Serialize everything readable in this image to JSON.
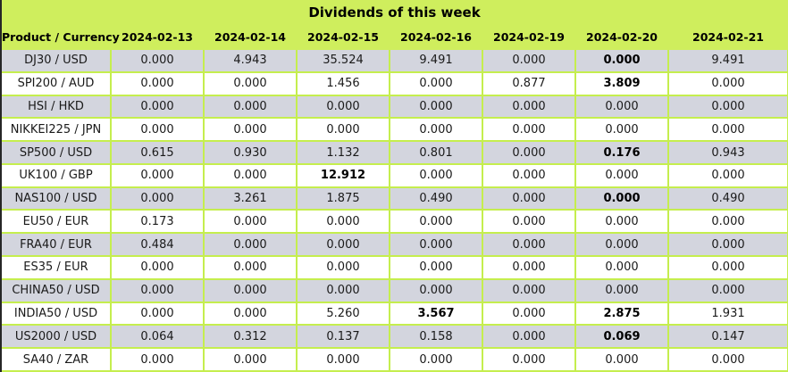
{
  "title": "Dividends of this week",
  "colors": {
    "header_green": "#cfee5d",
    "grid_green": "#c5ee4e",
    "row_gray": "#d3d5de",
    "row_white": "#ffffff",
    "text": "#1a1a1a",
    "left_border": "#262626"
  },
  "chart_data": {
    "type": "table",
    "title": "Dividends of this week",
    "columns": [
      "Product / Currency",
      "2024-02-13",
      "2024-02-14",
      "2024-02-15",
      "2024-02-16",
      "2024-02-19",
      "2024-02-20",
      "2024-02-21"
    ],
    "rows": [
      {
        "product": "DJ30 / USD",
        "values": [
          "0.000",
          "4.943",
          "35.524",
          "9.491",
          "0.000",
          "0.000",
          "9.491"
        ],
        "bold_columns": [
          5
        ]
      },
      {
        "product": "SPI200 / AUD",
        "values": [
          "0.000",
          "0.000",
          "1.456",
          "0.000",
          "0.877",
          "3.809",
          "0.000"
        ],
        "bold_columns": [
          5
        ]
      },
      {
        "product": "HSI / HKD",
        "values": [
          "0.000",
          "0.000",
          "0.000",
          "0.000",
          "0.000",
          "0.000",
          "0.000"
        ],
        "bold_columns": []
      },
      {
        "product": "NIKKEI225 / JPN",
        "values": [
          "0.000",
          "0.000",
          "0.000",
          "0.000",
          "0.000",
          "0.000",
          "0.000"
        ],
        "bold_columns": []
      },
      {
        "product": "SP500 / USD",
        "values": [
          "0.615",
          "0.930",
          "1.132",
          "0.801",
          "0.000",
          "0.176",
          "0.943"
        ],
        "bold_columns": [
          5
        ]
      },
      {
        "product": "UK100 / GBP",
        "values": [
          "0.000",
          "0.000",
          "12.912",
          "0.000",
          "0.000",
          "0.000",
          "0.000"
        ],
        "bold_columns": [
          2
        ]
      },
      {
        "product": "NAS100 / USD",
        "values": [
          "0.000",
          "3.261",
          "1.875",
          "0.490",
          "0.000",
          "0.000",
          "0.490"
        ],
        "bold_columns": [
          5
        ]
      },
      {
        "product": "EU50 / EUR",
        "values": [
          "0.173",
          "0.000",
          "0.000",
          "0.000",
          "0.000",
          "0.000",
          "0.000"
        ],
        "bold_columns": []
      },
      {
        "product": "FRA40 / EUR",
        "values": [
          "0.484",
          "0.000",
          "0.000",
          "0.000",
          "0.000",
          "0.000",
          "0.000"
        ],
        "bold_columns": []
      },
      {
        "product": "ES35 / EUR",
        "values": [
          "0.000",
          "0.000",
          "0.000",
          "0.000",
          "0.000",
          "0.000",
          "0.000"
        ],
        "bold_columns": []
      },
      {
        "product": "CHINA50 / USD",
        "values": [
          "0.000",
          "0.000",
          "0.000",
          "0.000",
          "0.000",
          "0.000",
          "0.000"
        ],
        "bold_columns": []
      },
      {
        "product": "INDIA50 / USD",
        "values": [
          "0.000",
          "0.000",
          "5.260",
          "3.567",
          "0.000",
          "2.875",
          "1.931"
        ],
        "bold_columns": [
          3,
          5
        ]
      },
      {
        "product": "US2000 / USD",
        "values": [
          "0.064",
          "0.312",
          "0.137",
          "0.158",
          "0.000",
          "0.069",
          "0.147"
        ],
        "bold_columns": [
          5
        ]
      },
      {
        "product": "SA40 / ZAR",
        "values": [
          "0.000",
          "0.000",
          "0.000",
          "0.000",
          "0.000",
          "0.000",
          "0.000"
        ],
        "bold_columns": []
      }
    ]
  }
}
